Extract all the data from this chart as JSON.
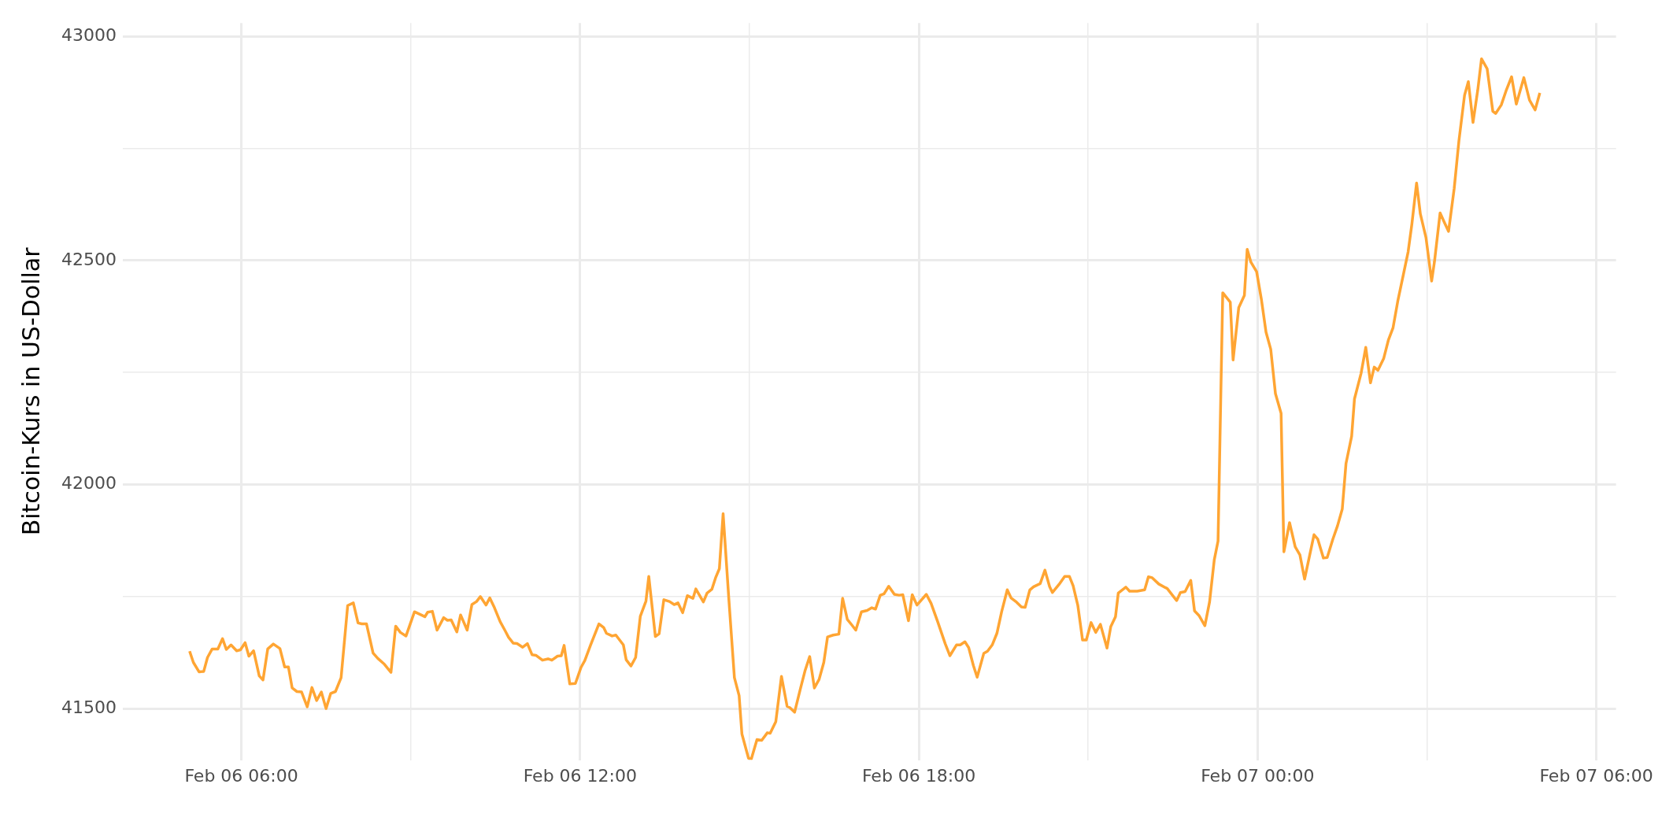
{
  "chart_data": {
    "type": "line",
    "ylabel": "Bitcoin-Kurs in US-Dollar",
    "xlim": [
      "--02-06T03:54",
      "--02-07T06:21"
    ],
    "ylim": [
      41385,
      43030
    ],
    "xticks": [
      {
        "value": "--02-06T06:00",
        "label": "Feb 06 06:00"
      },
      {
        "value": "--02-06T09:00",
        "label": null
      },
      {
        "value": "--02-06T12:00",
        "label": "Feb 06 12:00"
      },
      {
        "value": "--02-06T15:00",
        "label": null
      },
      {
        "value": "--02-06T18:00",
        "label": "Feb 06 18:00"
      },
      {
        "value": "--02-06T21:00",
        "label": null
      },
      {
        "value": "--02-07T00:00",
        "label": "Feb 07 00:00"
      },
      {
        "value": "--02-07T03:00",
        "label": null
      },
      {
        "value": "--02-07T06:00",
        "label": "Feb 07 06:00"
      }
    ],
    "yticks": [
      41500,
      {
        "value": 41750,
        "label": null
      },
      42000,
      {
        "value": 42250,
        "label": null
      },
      42500,
      {
        "value": 42750,
        "label": null
      },
      43000
    ],
    "grid": true,
    "legend": false,
    "marker": "none",
    "line_style": "solid",
    "series": [
      {
        "color": "#ffa533",
        "x": [
          "--02-06T05:05",
          "--02-06T05:09",
          "--02-06T05:15",
          "--02-06T05:20",
          "--02-06T05:24",
          "--02-06T05:29",
          "--02-06T05:35",
          "--02-06T05:40",
          "--02-06T05:44",
          "--02-06T05:49",
          "--02-06T05:55",
          "--02-06T05:59",
          "--02-06T06:04",
          "--02-06T06:08",
          "--02-06T06:13",
          "--02-06T06:19",
          "--02-06T06:23",
          "--02-06T06:28",
          "--02-06T06:34",
          "--02-06T06:41",
          "--02-06T06:46",
          "--02-06T06:50",
          "--02-06T06:54",
          "--02-06T06:59",
          "--02-06T07:04",
          "--02-06T07:10",
          "--02-06T07:15",
          "--02-06T07:20",
          "--02-06T07:25",
          "--02-06T07:30",
          "--02-06T07:35",
          "--02-06T07:40",
          "--02-06T07:46",
          "--02-06T07:49",
          "--02-06T07:53",
          "--02-06T07:59",
          "--02-06T08:04",
          "--02-06T08:08",
          "--02-06T08:13",
          "--02-06T08:20",
          "--02-06T08:25",
          "--02-06T08:32",
          "--02-06T08:39",
          "--02-06T08:44",
          "--02-06T08:49",
          "--02-06T08:55",
          "--02-06T09:04",
          "--02-06T09:15",
          "--02-06T09:18",
          "--02-06T09:23",
          "--02-06T09:28",
          "--02-06T09:35",
          "--02-06T09:39",
          "--02-06T09:43",
          "--02-06T09:49",
          "--02-06T09:53",
          "--02-06T10:00",
          "--02-06T10:05",
          "--02-06T10:10",
          "--02-06T10:14",
          "--02-06T10:20",
          "--02-06T10:24",
          "--02-06T10:29",
          "--02-06T10:35",
          "--02-06T10:40",
          "--02-06T10:44",
          "--02-06T10:49",
          "--02-06T10:53",
          "--02-06T10:59",
          "--02-06T11:04",
          "--02-06T11:09",
          "--02-06T11:13",
          "--02-06T11:20",
          "--02-06T11:26",
          "--02-06T11:30",
          "--02-06T11:36",
          "--02-06T11:40",
          "--02-06T11:43",
          "--02-06T11:49",
          "--02-06T11:55",
          "--02-06T12:01",
          "--02-06T12:05",
          "--02-06T12:11",
          "--02-06T12:20",
          "--02-06T12:25",
          "--02-06T12:28",
          "--02-06T12:34",
          "--02-06T12:38",
          "--02-06T12:46",
          "--02-06T12:49",
          "--02-06T12:54",
          "--02-06T12:59",
          "--02-06T13:04",
          "--02-06T13:10",
          "--02-06T13:13",
          "--02-06T13:20",
          "--02-06T13:24",
          "--02-06T13:29",
          "--02-06T13:35",
          "--02-06T13:40",
          "--02-06T13:44",
          "--02-06T13:49",
          "--02-06T13:54",
          "--02-06T14:00",
          "--02-06T14:03",
          "--02-06T14:11",
          "--02-06T14:15",
          "--02-06T14:20",
          "--02-06T14:24",
          "--02-06T14:28",
          "--02-06T14:32",
          "--02-06T14:38",
          "--02-06T14:44",
          "--02-06T14:49",
          "--02-06T14:52",
          "--02-06T14:59",
          "--02-06T15:02",
          "--02-06T15:08",
          "--02-06T15:13",
          "--02-06T15:19",
          "--02-06T15:22",
          "--02-06T15:28",
          "--02-06T15:34",
          "--02-06T15:40",
          "--02-06T15:43",
          "--02-06T15:48",
          "--02-06T15:54",
          "--02-06T15:59",
          "--02-06T16:04",
          "--02-06T16:09",
          "--02-06T16:14",
          "--02-06T16:19",
          "--02-06T16:23",
          "--02-06T16:29",
          "--02-06T16:35",
          "--02-06T16:39",
          "--02-06T16:44",
          "--02-06T16:49",
          "--02-06T16:53",
          "--02-06T16:59",
          "--02-06T17:05",
          "--02-06T17:10",
          "--02-06T17:14",
          "--02-06T17:19",
          "--02-06T17:23",
          "--02-06T17:28",
          "--02-06T17:34",
          "--02-06T17:39",
          "--02-06T17:43",
          "--02-06T17:49",
          "--02-06T17:53",
          "--02-06T17:58",
          "--02-06T18:08",
          "--02-06T18:13",
          "--02-06T18:20",
          "--02-06T18:28",
          "--02-06T18:33",
          "--02-06T18:40",
          "--02-06T18:44",
          "--02-06T18:49",
          "--02-06T18:53",
          "--02-06T18:58",
          "--02-06T19:02",
          "--02-06T19:09",
          "--02-06T19:13",
          "--02-06T19:18",
          "--02-06T19:23",
          "--02-06T19:28",
          "--02-06T19:34",
          "--02-06T19:38",
          "--02-06T19:43",
          "--02-06T19:49",
          "--02-06T19:53",
          "--02-06T19:58",
          "--02-06T20:02",
          "--02-06T20:09",
          "--02-06T20:14",
          "--02-06T20:19",
          "--02-06T20:22",
          "--02-06T20:29",
          "--02-06T20:35",
          "--02-06T20:40",
          "--02-06T20:44",
          "--02-06T20:49",
          "--02-06T20:54",
          "--02-06T20:58",
          "--02-06T21:03",
          "--02-06T21:08",
          "--02-06T21:13",
          "--02-06T21:20",
          "--02-06T21:24",
          "--02-06T21:29",
          "--02-06T21:32",
          "--02-06T21:40",
          "--02-06T21:44",
          "--02-06T21:52",
          "--02-06T22:00",
          "--02-06T22:04",
          "--02-06T22:08",
          "--02-06T22:15",
          "--02-06T22:22",
          "--02-06T22:24",
          "--02-06T22:34",
          "--02-06T22:38",
          "--02-06T22:43",
          "--02-06T22:49",
          "--02-06T22:53",
          "--02-06T22:58",
          "--02-06T23:04",
          "--02-06T23:09",
          "--02-06T23:14",
          "--02-06T23:18",
          "--02-06T23:23",
          "--02-06T23:31",
          "--02-06T23:34",
          "--02-06T23:40",
          "--02-06T23:46",
          "--02-06T23:49",
          "--02-06T23:53",
          "--02-06T23:59",
          "--02-07T00:04",
          "--02-07T00:09",
          "--02-07T00:14",
          "--02-07T00:19",
          "--02-07T00:25",
          "--02-07T00:28",
          "--02-07T00:34",
          "--02-07T00:40",
          "--02-07T00:45",
          "--02-07T00:50",
          "--02-07T01:00",
          "--02-07T01:04",
          "--02-07T01:10",
          "--02-07T01:14",
          "--02-07T01:20",
          "--02-07T01:25",
          "--02-07T01:30",
          "--02-07T01:34",
          "--02-07T01:40",
          "--02-07T01:43",
          "--02-07T01:50",
          "--02-07T01:55",
          "--02-07T02:00",
          "--02-07T02:04",
          "--02-07T02:08",
          "--02-07T02:14",
          "--02-07T02:19",
          "--02-07T02:24",
          "--02-07T02:29",
          "--02-07T02:35",
          "--02-07T02:40",
          "--02-07T02:44",
          "--02-07T02:49",
          "--02-07T02:53",
          "--02-07T02:59",
          "--02-07T03:05",
          "--02-07T03:08",
          "--02-07T03:14",
          "--02-07T03:19",
          "--02-07T03:23",
          "--02-07T03:29",
          "--02-07T03:34",
          "--02-07T03:40",
          "--02-07T03:44",
          "--02-07T03:49",
          "--02-07T03:54",
          "--02-07T03:58",
          "--02-07T04:04",
          "--02-07T04:10",
          "--02-07T04:13",
          "--02-07T04:19",
          "--02-07T04:24",
          "--02-07T04:30",
          "--02-07T04:35",
          "--02-07T04:43",
          "--02-07T04:49",
          "--02-07T04:55",
          "--02-07T05:00"
        ],
        "values": [
          41628,
          41603,
          41582,
          41583,
          41614,
          41633,
          41633,
          41656,
          41632,
          41642,
          41629,
          41631,
          41647,
          41617,
          41629,
          41573,
          41564,
          41633,
          41644,
          41634,
          41593,
          41593,
          41546,
          41538,
          41537,
          41504,
          41547,
          41518,
          41537,
          41500,
          41534,
          41538,
          41569,
          41638,
          41730,
          41736,
          41691,
          41689,
          41689,
          41624,
          41612,
          41599,
          41581,
          41684,
          41670,
          41662,
          41716,
          41705,
          41715,
          41717,
          41675,
          41703,
          41697,
          41698,
          41671,
          41709,
          41675,
          41732,
          41739,
          41750,
          41731,
          41747,
          41725,
          41694,
          41675,
          41659,
          41646,
          41645,
          41637,
          41645,
          41620,
          41619,
          41608,
          41611,
          41608,
          41617,
          41618,
          41641,
          41555,
          41556,
          41592,
          41607,
          41641,
          41689,
          41681,
          41668,
          41662,
          41664,
          41642,
          41609,
          41595,
          41614,
          41706,
          41740,
          41795,
          41661,
          41667,
          41743,
          41739,
          41732,
          41736,
          41714,
          41752,
          41746,
          41767,
          41738,
          41758,
          41766,
          41792,
          41812,
          41935,
          41747,
          41569,
          41529,
          41443,
          41389,
          41388,
          41431,
          41429,
          41446,
          41445,
          41471,
          41572,
          41505,
          41502,
          41492,
          41543,
          41584,
          41616,
          41546,
          41565,
          41603,
          41660,
          41664,
          41666,
          41746,
          41699,
          41686,
          41675,
          41716,
          41719,
          41725,
          41722,
          41753,
          41756,
          41773,
          41755,
          41753,
          41754,
          41696,
          41754,
          41731,
          41755,
          41735,
          41694,
          41645,
          41618,
          41642,
          41642,
          41649,
          41636,
          41596,
          41570,
          41623,
          41628,
          41642,
          41668,
          41716,
          41765,
          41747,
          41739,
          41727,
          41726,
          41765,
          41772,
          41779,
          41809,
          41772,
          41759,
          41777,
          41795,
          41795,
          41774,
          41730,
          41653,
          41653,
          41692,
          41670,
          41688,
          41635,
          41683,
          41705,
          41758,
          41771,
          41762,
          41762,
          41765,
          41794,
          41792,
          41778,
          41770,
          41768,
          41741,
          41759,
          41761,
          41786,
          41718,
          41707,
          41685,
          41738,
          41832,
          41874,
          42428,
          42407,
          42278,
          42395,
          42422,
          42525,
          42496,
          42475,
          42414,
          42340,
          42302,
          42203,
          42159,
          41850,
          41915,
          41861,
          41843,
          41789,
          41888,
          41878,
          41836,
          41837,
          41878,
          41908,
          41945,
          42047,
          42108,
          42191,
          42248,
          42306,
          42227,
          42262,
          42255,
          42281,
          42322,
          42350,
          42409,
          42469,
          42519,
          42581,
          42673,
          42604,
          42551,
          42454,
          42497,
          42606,
          42583,
          42565,
          42661,
          42767,
          42869,
          42899,
          42808,
          42880,
          42950,
          42928,
          42833,
          42828,
          42847,
          42878,
          42910,
          42849,
          42908,
          42858,
          42836,
          42874
        ]
      }
    ]
  }
}
